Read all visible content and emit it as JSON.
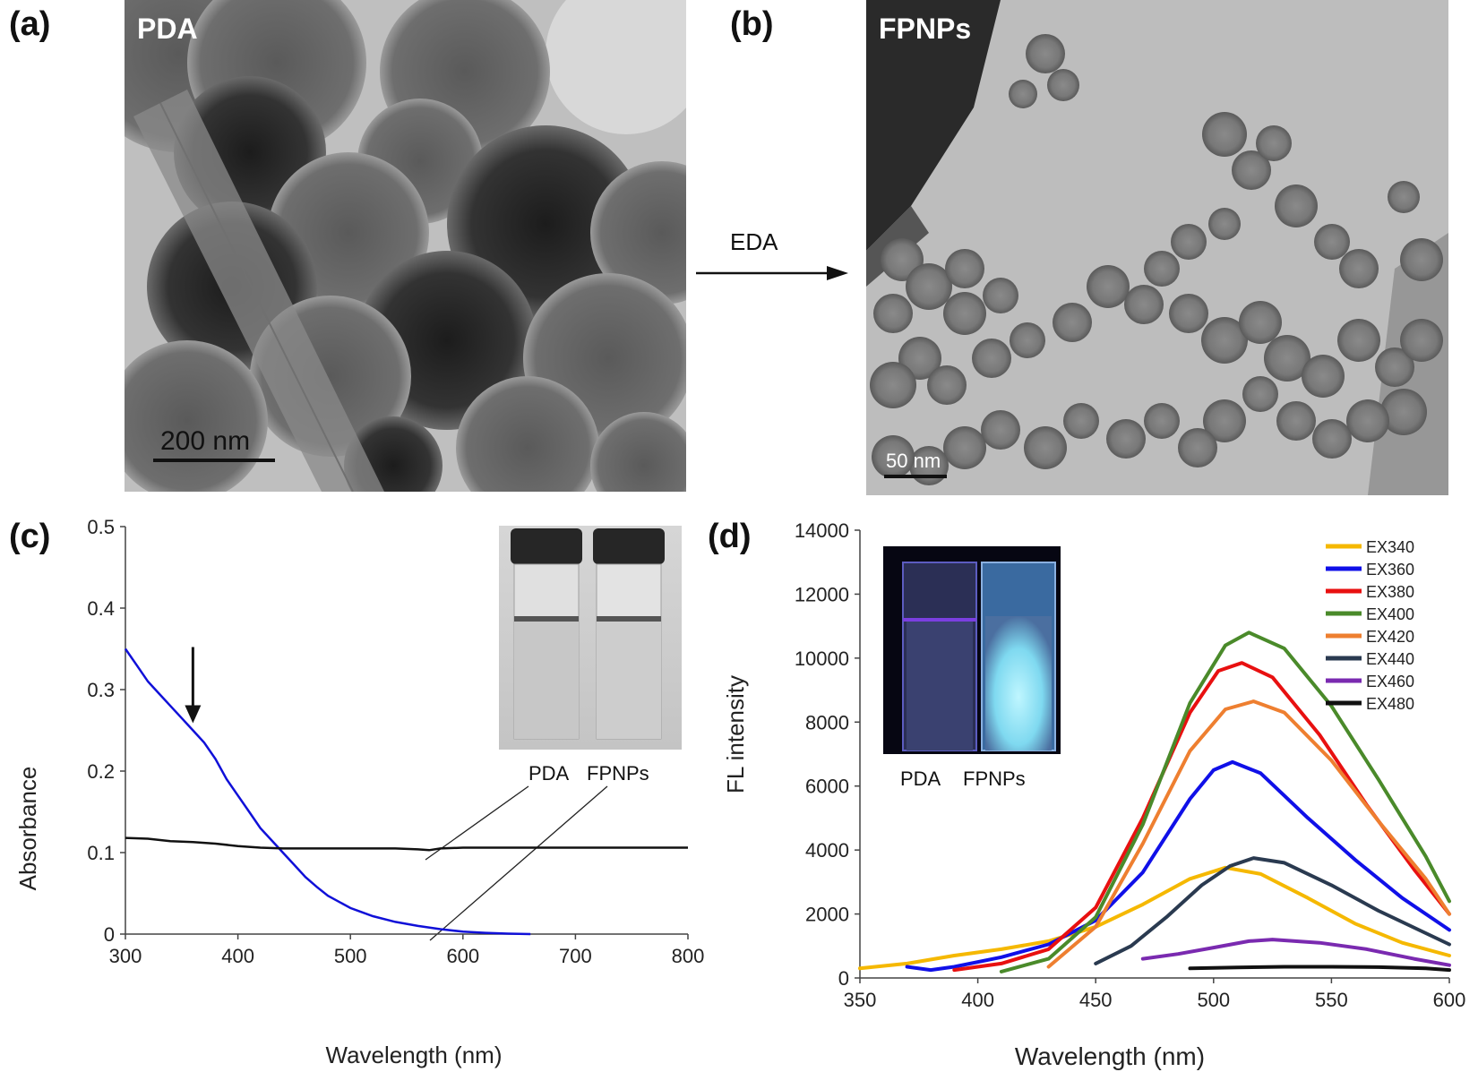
{
  "panel_labels": {
    "a": "(a)",
    "b": "(b)",
    "c": "(c)",
    "d": "(d)"
  },
  "tem_a": {
    "name": "PDA",
    "scale": "200 nm"
  },
  "tem_b": {
    "name": "FPNPs",
    "scale": "50 nm"
  },
  "arrow_label": "EDA",
  "inset_c": {
    "labels": [
      "PDA",
      "FPNPs"
    ]
  },
  "inset_d": {
    "labels": [
      "PDA",
      "FPNPs"
    ]
  },
  "chart_data": [
    {
      "type": "line",
      "xlabel": "Wavelength  (nm)",
      "ylabel": "Absorbance",
      "xlim": [
        300,
        800
      ],
      "ylim": [
        0,
        0.5
      ],
      "xticks": [
        300,
        400,
        500,
        600,
        700,
        800
      ],
      "yticks": [
        0,
        0.1,
        0.2,
        0.3,
        0.4,
        0.5
      ],
      "grid": false,
      "colors": [
        "#1010d8",
        "#111111"
      ],
      "series": [
        {
          "x": [
            300,
            310,
            320,
            330,
            340,
            350,
            360,
            370,
            380,
            390,
            400,
            410,
            420,
            430,
            440,
            450,
            460,
            470,
            480,
            500,
            520,
            540,
            560,
            580,
            600,
            620,
            640,
            660
          ],
          "y": [
            0.35,
            0.33,
            0.31,
            0.295,
            0.28,
            0.265,
            0.25,
            0.235,
            0.215,
            0.19,
            0.17,
            0.15,
            0.13,
            0.115,
            0.1,
            0.085,
            0.07,
            0.058,
            0.047,
            0.032,
            0.022,
            0.015,
            0.01,
            0.006,
            0.003,
            0.0015,
            0.0005,
            0
          ]
        },
        {
          "x": [
            300,
            320,
            340,
            360,
            380,
            400,
            420,
            440,
            460,
            480,
            500,
            520,
            540,
            560,
            570,
            580,
            600,
            650,
            700,
            750,
            800
          ],
          "y": [
            0.118,
            0.117,
            0.114,
            0.113,
            0.111,
            0.108,
            0.106,
            0.105,
            0.105,
            0.105,
            0.105,
            0.105,
            0.105,
            0.104,
            0.103,
            0.105,
            0.106,
            0.106,
            0.106,
            0.106,
            0.106
          ]
        }
      ],
      "annotation_arrow_x": 360
    },
    {
      "type": "line",
      "xlabel": "Wavelength  (nm)",
      "ylabel": "FL intensity",
      "xlim": [
        350,
        600
      ],
      "ylim": [
        0,
        14000
      ],
      "xticks": [
        350,
        400,
        450,
        500,
        550,
        600
      ],
      "yticks": [
        0,
        2000,
        4000,
        6000,
        8000,
        10000,
        12000,
        14000
      ],
      "grid": false,
      "legend_position": "top-right",
      "series": [
        {
          "name": "EX340",
          "color": "#f5b800",
          "points": [
            [
              350,
              300
            ],
            [
              370,
              450
            ],
            [
              390,
              700
            ],
            [
              410,
              900
            ],
            [
              430,
              1150
            ],
            [
              450,
              1600
            ],
            [
              470,
              2300
            ],
            [
              490,
              3100
            ],
            [
              505,
              3450
            ],
            [
              520,
              3250
            ],
            [
              540,
              2500
            ],
            [
              560,
              1700
            ],
            [
              580,
              1100
            ],
            [
              600,
              700
            ]
          ]
        },
        {
          "name": "EX360",
          "color": "#1010e8",
          "points": [
            [
              370,
              350
            ],
            [
              380,
              250
            ],
            [
              390,
              350
            ],
            [
              410,
              650
            ],
            [
              430,
              1050
            ],
            [
              450,
              1800
            ],
            [
              470,
              3300
            ],
            [
              490,
              5600
            ],
            [
              500,
              6500
            ],
            [
              508,
              6750
            ],
            [
              520,
              6400
            ],
            [
              540,
              5000
            ],
            [
              560,
              3700
            ],
            [
              580,
              2500
            ],
            [
              600,
              1500
            ]
          ]
        },
        {
          "name": "EX380",
          "color": "#e81010",
          "points": [
            [
              390,
              250
            ],
            [
              410,
              450
            ],
            [
              430,
              900
            ],
            [
              450,
              2200
            ],
            [
              470,
              5000
            ],
            [
              490,
              8300
            ],
            [
              502,
              9600
            ],
            [
              512,
              9850
            ],
            [
              525,
              9400
            ],
            [
              545,
              7600
            ],
            [
              565,
              5400
            ],
            [
              585,
              3400
            ],
            [
              600,
              2000
            ]
          ]
        },
        {
          "name": "EX400",
          "color": "#4a8a2a",
          "points": [
            [
              410,
              200
            ],
            [
              430,
              600
            ],
            [
              450,
              1900
            ],
            [
              470,
              4800
            ],
            [
              490,
              8600
            ],
            [
              505,
              10400
            ],
            [
              515,
              10800
            ],
            [
              530,
              10300
            ],
            [
              550,
              8500
            ],
            [
              570,
              6200
            ],
            [
              590,
              3800
            ],
            [
              600,
              2400
            ]
          ]
        },
        {
          "name": "EX420",
          "color": "#ee7f30",
          "points": [
            [
              430,
              350
            ],
            [
              450,
              1600
            ],
            [
              470,
              4200
            ],
            [
              490,
              7100
            ],
            [
              505,
              8400
            ],
            [
              517,
              8650
            ],
            [
              530,
              8300
            ],
            [
              550,
              6800
            ],
            [
              570,
              4900
            ],
            [
              590,
              3100
            ],
            [
              600,
              2000
            ]
          ]
        },
        {
          "name": "EX440",
          "color": "#2a3a50",
          "points": [
            [
              450,
              450
            ],
            [
              465,
              1000
            ],
            [
              480,
              1900
            ],
            [
              495,
              2900
            ],
            [
              507,
              3500
            ],
            [
              517,
              3750
            ],
            [
              530,
              3600
            ],
            [
              550,
              2900
            ],
            [
              570,
              2100
            ],
            [
              590,
              1400
            ],
            [
              600,
              1050
            ]
          ]
        },
        {
          "name": "EX460",
          "color": "#7a2ab0",
          "points": [
            [
              470,
              600
            ],
            [
              485,
              750
            ],
            [
              500,
              950
            ],
            [
              515,
              1150
            ],
            [
              525,
              1200
            ],
            [
              545,
              1100
            ],
            [
              565,
              900
            ],
            [
              585,
              600
            ],
            [
              600,
              400
            ]
          ]
        },
        {
          "name": "EX480",
          "color": "#111111",
          "points": [
            [
              490,
              300
            ],
            [
              510,
              330
            ],
            [
              530,
              350
            ],
            [
              550,
              350
            ],
            [
              570,
              340
            ],
            [
              590,
              300
            ],
            [
              600,
              250
            ]
          ]
        }
      ]
    }
  ]
}
